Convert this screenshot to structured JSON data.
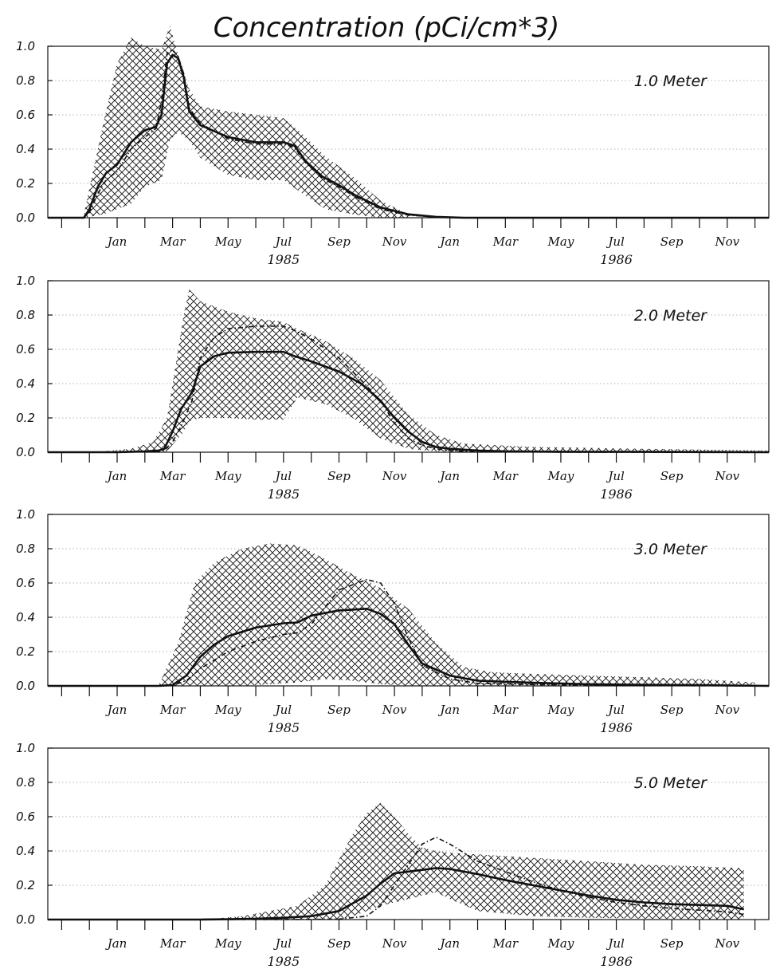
{
  "chart_data": {
    "type": "line",
    "title": "Concentration (pCi/cm*3)",
    "x_tick_labels": [
      "Jan",
      "Mar",
      "May",
      "Jul",
      "Sep",
      "Nov",
      "Jan",
      "Mar",
      "May",
      "Jul",
      "Sep",
      "Nov"
    ],
    "x_tick_months": [
      1,
      3,
      5,
      7,
      9,
      11,
      13,
      15,
      17,
      19,
      21,
      23
    ],
    "year_labels": [
      {
        "label": "1985",
        "month": 7
      },
      {
        "label": "1986",
        "month": 19
      }
    ],
    "xlim": [
      -1.5,
      24.5
    ],
    "ylim": [
      0,
      1.0
    ],
    "y_ticks": [
      "0.0",
      "0.2",
      "0.4",
      "0.6",
      "0.8",
      "1.0"
    ],
    "y_tick_values": [
      0,
      0.2,
      0.4,
      0.6,
      0.8,
      1.0
    ],
    "grid": true,
    "panels": [
      {
        "label": "1.0 Meter",
        "series": [
          {
            "style": "solid",
            "x": [
              -1.5,
              -0.2,
              0.0,
              0.3,
              0.6,
              1.0,
              1.5,
              2.0,
              2.4,
              2.6,
              2.8,
              3.0,
              3.2,
              3.4,
              3.6,
              4.0,
              5.0,
              6.0,
              7.0,
              7.4,
              7.8,
              8.4,
              9.0,
              9.6,
              10.5,
              11.5,
              12.5,
              13.5,
              24.5
            ],
            "y": [
              0,
              0,
              0.05,
              0.18,
              0.26,
              0.31,
              0.44,
              0.51,
              0.53,
              0.6,
              0.9,
              0.95,
              0.93,
              0.82,
              0.62,
              0.54,
              0.47,
              0.44,
              0.44,
              0.42,
              0.33,
              0.24,
              0.19,
              0.13,
              0.06,
              0.02,
              0.005,
              0,
              0
            ]
          },
          {
            "style": "dashdot",
            "x": [
              -1.5,
              -0.2,
              0.0,
              0.3,
              0.6,
              1.0,
              1.5,
              2.0,
              2.4,
              2.6,
              2.8,
              3.0,
              3.2,
              3.4,
              3.6,
              4.0,
              5.0,
              6.0,
              7.0,
              7.4,
              7.8,
              8.4,
              9.0,
              9.6,
              10.5,
              11.5,
              12.5,
              13.5,
              24.5
            ],
            "y": [
              0,
              0,
              0.03,
              0.14,
              0.22,
              0.27,
              0.4,
              0.47,
              0.52,
              0.68,
              0.96,
              0.98,
              0.94,
              0.84,
              0.64,
              0.55,
              0.46,
              0.43,
              0.43,
              0.41,
              0.32,
              0.23,
              0.18,
              0.12,
              0.05,
              0.015,
              0.004,
              0,
              0
            ]
          }
        ],
        "band": {
          "x": [
            -0.2,
            0.5,
            1.0,
            1.5,
            2.0,
            2.6,
            2.9,
            3.2,
            3.6,
            4.0,
            5.0,
            6.0,
            7.0,
            7.6,
            8.5,
            9.5,
            10.5,
            11.5
          ],
          "upper": [
            0.02,
            0.55,
            0.9,
            1.05,
            1.0,
            0.98,
            1.12,
            0.95,
            0.75,
            0.65,
            0.62,
            0.6,
            0.58,
            0.5,
            0.36,
            0.24,
            0.1,
            0.02
          ],
          "lower": [
            0,
            0.02,
            0.05,
            0.08,
            0.18,
            0.22,
            0.45,
            0.5,
            0.45,
            0.35,
            0.25,
            0.22,
            0.22,
            0.15,
            0.05,
            0.02,
            0,
            0
          ]
        }
      },
      {
        "label": "2.0 Meter",
        "series": [
          {
            "style": "solid",
            "x": [
              -1.5,
              1.0,
              2.0,
              2.5,
              2.7,
              3.0,
              3.3,
              3.7,
              4.0,
              4.5,
              5.0,
              6.0,
              7.0,
              7.4,
              8.0,
              9.0,
              9.8,
              10.5,
              11.0,
              11.5,
              12.0,
              12.5,
              13.0,
              13.5,
              14.0,
              15.0,
              17.0,
              20.0,
              24.5
            ],
            "y": [
              0,
              0,
              0.005,
              0.01,
              0.02,
              0.12,
              0.25,
              0.35,
              0.5,
              0.56,
              0.58,
              0.585,
              0.585,
              0.56,
              0.53,
              0.47,
              0.4,
              0.3,
              0.2,
              0.12,
              0.06,
              0.03,
              0.02,
              0.015,
              0.01,
              0.005,
              0.003,
              0.002,
              0
            ]
          },
          {
            "style": "dashdot",
            "x": [
              -1.5,
              1.0,
              2.0,
              2.5,
              2.7,
              3.0,
              3.3,
              3.7,
              4.0,
              4.5,
              5.0,
              6.0,
              7.0,
              7.4,
              8.0,
              9.0,
              9.8,
              10.5,
              11.0,
              11.5,
              12.0,
              12.5,
              13.0,
              13.5,
              14.0,
              15.0,
              17.0,
              20.0,
              24.5
            ],
            "y": [
              0,
              0,
              0.003,
              0.006,
              0.01,
              0.06,
              0.15,
              0.3,
              0.55,
              0.67,
              0.72,
              0.735,
              0.735,
              0.71,
              0.66,
              0.55,
              0.42,
              0.3,
              0.17,
              0.08,
              0.04,
              0.02,
              0.01,
              0.005,
              0.003,
              0.002,
              0.001,
              0,
              0
            ]
          }
        ],
        "band": {
          "x": [
            0.5,
            1.5,
            2.3,
            2.8,
            3.4,
            3.6,
            4.0,
            5.0,
            6.0,
            7.0,
            7.5,
            8.5,
            9.5,
            10.5,
            11.5,
            12.5,
            13.5,
            16.0,
            20.0,
            24.5
          ],
          "upper": [
            0.005,
            0.02,
            0.06,
            0.2,
            0.8,
            0.95,
            0.88,
            0.82,
            0.78,
            0.76,
            0.72,
            0.65,
            0.55,
            0.42,
            0.22,
            0.1,
            0.05,
            0.03,
            0.02,
            0.01
          ],
          "lower": [
            0,
            0,
            0,
            0.005,
            0.12,
            0.18,
            0.2,
            0.2,
            0.19,
            0.19,
            0.32,
            0.28,
            0.2,
            0.08,
            0.02,
            0.005,
            0,
            0,
            0,
            0
          ]
        }
      },
      {
        "label": "3.0 Meter",
        "series": [
          {
            "style": "solid",
            "x": [
              -1.5,
              2.5,
              3.0,
              3.5,
              4.0,
              4.5,
              5.0,
              6.0,
              7.0,
              7.5,
              8.0,
              9.0,
              10.0,
              10.5,
              11.0,
              11.5,
              12.0,
              13.0,
              14.0,
              16.0,
              18.0,
              20.0,
              22.0,
              24.5
            ],
            "y": [
              0,
              0,
              0.005,
              0.06,
              0.17,
              0.24,
              0.29,
              0.34,
              0.365,
              0.37,
              0.41,
              0.44,
              0.45,
              0.42,
              0.36,
              0.24,
              0.13,
              0.06,
              0.03,
              0.018,
              0.01,
              0.006,
              0.004,
              0
            ]
          },
          {
            "style": "dashdot",
            "x": [
              -1.5,
              2.5,
              3.0,
              3.5,
              4.0,
              4.5,
              5.0,
              6.0,
              7.0,
              7.5,
              8.0,
              9.0,
              10.0,
              10.5,
              11.0,
              11.5,
              12.0,
              13.0,
              14.0,
              16.0,
              18.0,
              20.0,
              22.0,
              24.5
            ],
            "y": [
              0,
              0,
              0.003,
              0.03,
              0.1,
              0.15,
              0.2,
              0.26,
              0.3,
              0.31,
              0.36,
              0.56,
              0.62,
              0.6,
              0.48,
              0.28,
              0.12,
              0.04,
              0.015,
              0.008,
              0.004,
              0.002,
              0.001,
              0
            ]
          }
        ],
        "band": {
          "x": [
            2.5,
            3.2,
            3.8,
            4.5,
            5.5,
            6.5,
            7.5,
            8.5,
            9.5,
            10.5,
            11.5,
            12.5,
            13.5,
            14.5,
            16.0,
            18.0,
            20.0,
            22.0,
            24.0
          ],
          "upper": [
            0.005,
            0.25,
            0.6,
            0.72,
            0.8,
            0.83,
            0.82,
            0.74,
            0.65,
            0.57,
            0.45,
            0.25,
            0.11,
            0.08,
            0.07,
            0.06,
            0.05,
            0.04,
            0.02
          ],
          "lower": [
            0,
            0,
            0,
            0,
            0,
            0.01,
            0.02,
            0.04,
            0.03,
            0.01,
            0,
            0,
            0,
            0,
            0,
            0,
            0,
            0,
            0
          ]
        }
      },
      {
        "label": "5.0 Meter",
        "series": [
          {
            "style": "solid",
            "x": [
              -1.5,
              4.0,
              5.0,
              6.0,
              7.0,
              8.0,
              9.0,
              10.0,
              10.5,
              11.0,
              12.0,
              12.5,
              13.0,
              14.0,
              15.0,
              16.0,
              17.0,
              18.0,
              19.0,
              20.0,
              21.0,
              22.0,
              23.0,
              23.6
            ],
            "y": [
              0,
              0,
              0.002,
              0.005,
              0.01,
              0.02,
              0.05,
              0.14,
              0.21,
              0.27,
              0.29,
              0.3,
              0.295,
              0.265,
              0.23,
              0.2,
              0.17,
              0.14,
              0.115,
              0.1,
              0.09,
              0.085,
              0.08,
              0.06
            ]
          },
          {
            "style": "dashdot",
            "x": [
              -1.5,
              4.0,
              5.0,
              6.0,
              7.0,
              8.0,
              9.0,
              10.0,
              10.5,
              11.0,
              12.0,
              12.5,
              13.0,
              14.0,
              15.0,
              16.0,
              17.0,
              18.0,
              19.0,
              20.0,
              21.0,
              22.0,
              23.0,
              23.6
            ],
            "y": [
              0,
              0,
              0,
              0,
              0,
              0.001,
              0.003,
              0.02,
              0.08,
              0.2,
              0.44,
              0.48,
              0.44,
              0.34,
              0.28,
              0.22,
              0.17,
              0.13,
              0.1,
              0.08,
              0.065,
              0.055,
              0.045,
              0.03
            ]
          }
        ],
        "band": {
          "x": [
            4.5,
            5.5,
            6.5,
            7.5,
            8.5,
            9.0,
            9.5,
            10.0,
            10.5,
            11.0,
            11.5,
            12.0,
            12.5,
            13.0,
            14.0,
            16.0,
            18.0,
            20.0,
            22.0,
            23.5,
            23.6
          ],
          "upper": [
            0.005,
            0.02,
            0.05,
            0.08,
            0.2,
            0.35,
            0.5,
            0.62,
            0.68,
            0.6,
            0.5,
            0.42,
            0.4,
            0.39,
            0.38,
            0.36,
            0.34,
            0.32,
            0.31,
            0.3,
            0.3
          ],
          "lower": [
            0,
            0,
            0,
            0,
            0,
            0,
            0.02,
            0.05,
            0.08,
            0.1,
            0.12,
            0.14,
            0.16,
            0.12,
            0.05,
            0.02,
            0.01,
            0.005,
            0.003,
            0,
            0
          ]
        }
      }
    ]
  }
}
